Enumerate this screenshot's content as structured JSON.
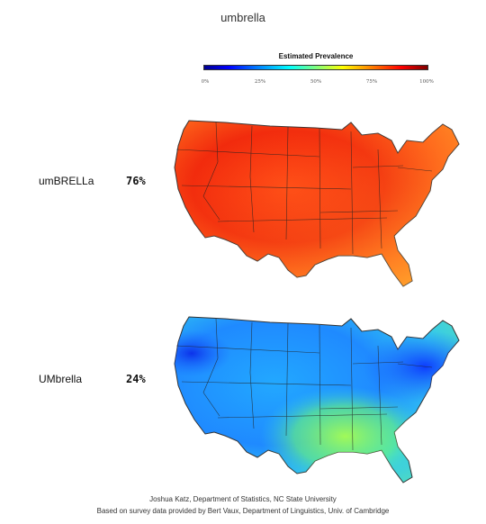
{
  "title": "umbrella",
  "legend": {
    "title": "Estimated Prevalence",
    "ticks": [
      "0%",
      "25%",
      "50%",
      "75%",
      "100%"
    ],
    "tick_fractions": [
      0,
      0.25,
      0.5,
      0.75,
      1
    ]
  },
  "variants": [
    {
      "label": "umBRELLa",
      "percent": "76%",
      "palette": [
        "#e4260c",
        "#f03d14",
        "#ff4e1a",
        "#ff6a20",
        "#ff9a28"
      ]
    },
    {
      "label": "UMbrella",
      "percent": "24%",
      "palette": [
        "#1a66ff",
        "#1f8cff",
        "#22b0ff",
        "#32d0e8",
        "#7fff5c"
      ]
    }
  ],
  "credits": {
    "line1": "Joshua Katz, Department of Statistics, NC State University",
    "line2": "Based on survey data provided by Bert Vaux, Department of Linguistics, Univ. of Cambridge"
  }
}
